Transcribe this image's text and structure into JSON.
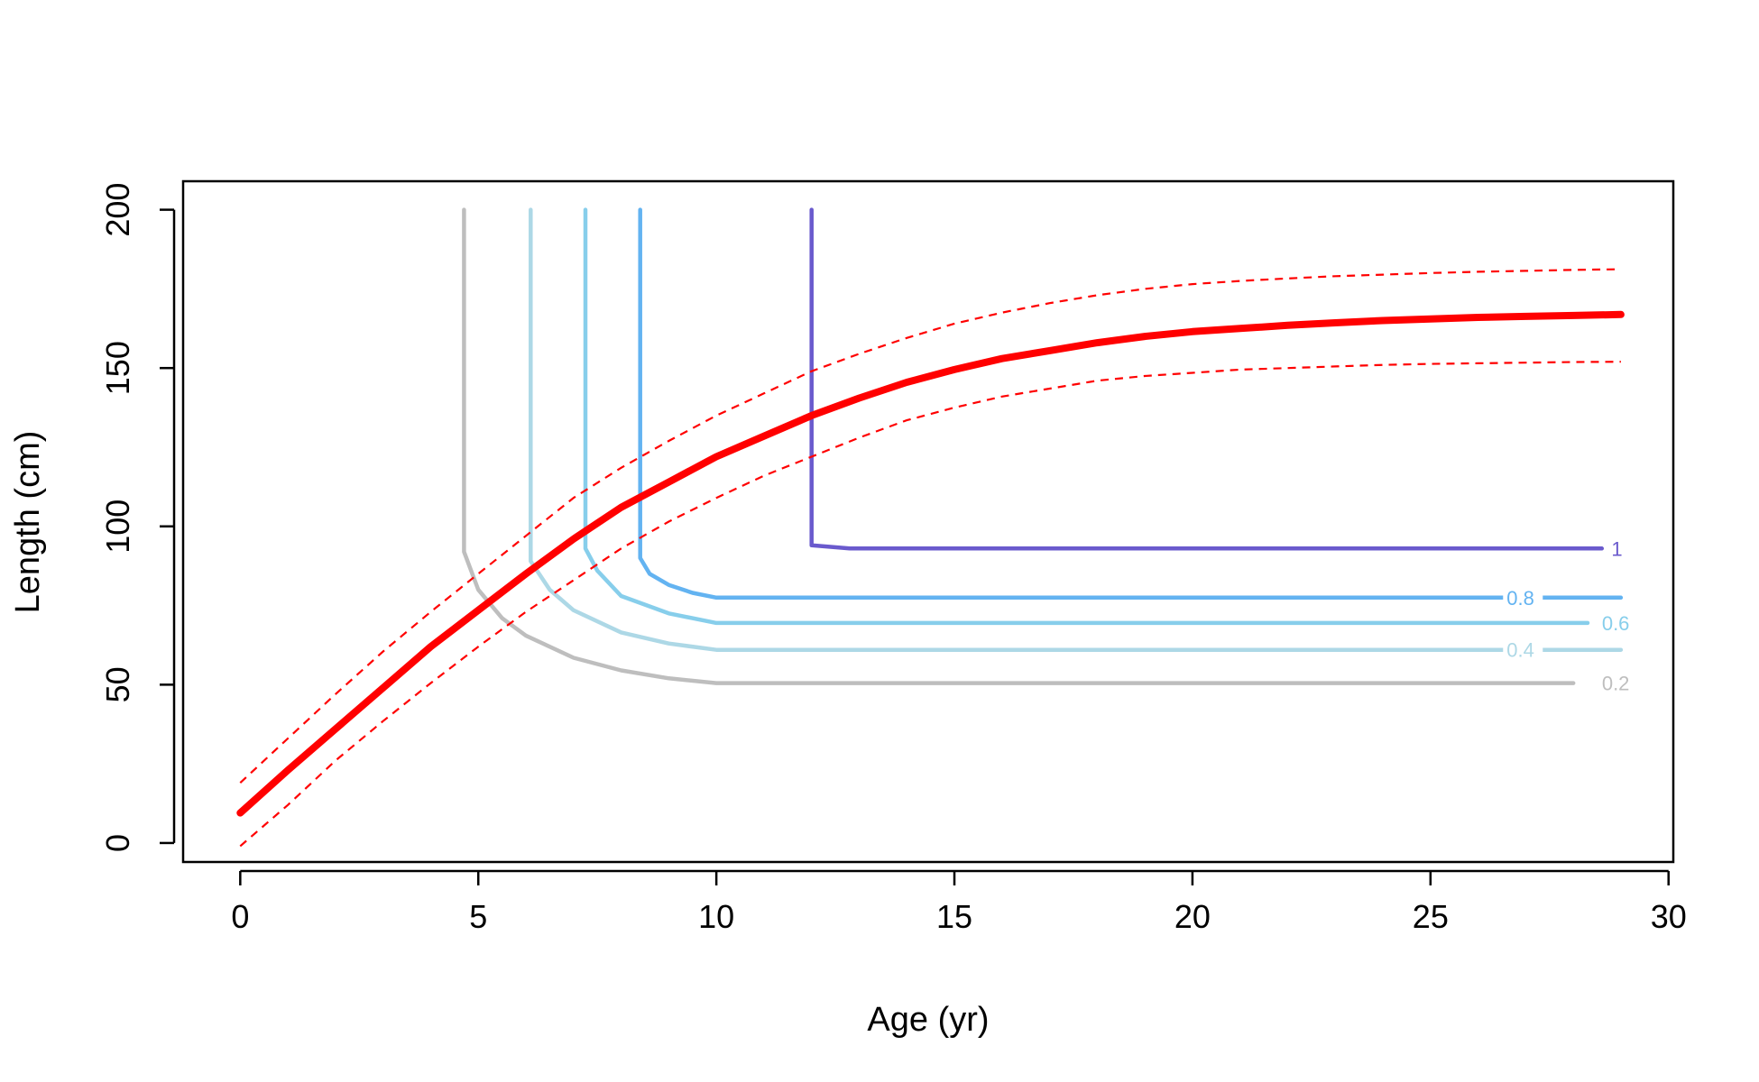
{
  "chart_data": {
    "type": "line",
    "title": "",
    "xlabel": "Age (yr)",
    "ylabel": "Length (cm)",
    "xlim": [
      -1.2,
      30.1
    ],
    "ylim": [
      -6,
      209
    ],
    "x_ticks": [
      0,
      5,
      10,
      15,
      20,
      25,
      30
    ],
    "y_ticks": [
      0,
      50,
      100,
      150,
      200
    ],
    "x_tick_labels": [
      "0",
      "5",
      "10",
      "15",
      "20",
      "25",
      "30"
    ],
    "y_tick_labels": [
      "0",
      "50",
      "100",
      "150",
      "200"
    ],
    "grid": false,
    "legend": "none",
    "growth_curve": {
      "color": "#ff0000",
      "x": [
        0,
        1,
        2,
        3,
        4,
        5,
        6,
        7,
        8,
        9,
        10,
        11,
        12,
        13,
        14,
        15,
        16,
        17,
        18,
        19,
        20,
        21,
        22,
        23,
        24,
        25,
        26,
        27,
        28,
        29
      ],
      "mean": [
        9.5,
        23,
        36,
        49,
        62,
        73.5,
        85,
        96,
        106,
        114,
        122,
        128.5,
        135,
        140.5,
        145.5,
        149.5,
        153,
        155.5,
        158,
        160,
        161.5,
        162.5,
        163.5,
        164.3,
        165,
        165.5,
        166,
        166.3,
        166.6,
        166.9
      ],
      "upper": [
        19,
        33,
        47,
        60.5,
        73,
        85,
        97,
        109,
        118.5,
        127,
        135,
        142,
        149,
        154.5,
        159.5,
        164,
        167.5,
        170.5,
        173,
        175,
        176.5,
        177.5,
        178.3,
        179,
        179.5,
        180,
        180.4,
        180.7,
        181,
        181.2
      ],
      "lower": [
        -1,
        12,
        26,
        38.5,
        50.5,
        62,
        73,
        83,
        93,
        101.5,
        109,
        116,
        122,
        128,
        133.5,
        137.5,
        141,
        143.5,
        146,
        147.5,
        148.5,
        149.5,
        150,
        150.5,
        151,
        151.3,
        151.5,
        151.7,
        151.9,
        152
      ]
    },
    "contours": [
      {
        "label": "1",
        "color": "#6a5acd",
        "x": [
          12,
          12,
          12.8,
          28.6
        ],
        "y": [
          200,
          94,
          93,
          93
        ],
        "label_x": 28.8,
        "label_y": 93,
        "line_ends": 28.6
      },
      {
        "label": "0.8",
        "color": "#63b3f1",
        "x": [
          8.4,
          8.4,
          8.6,
          9.0,
          9.5,
          10.0,
          29
        ],
        "y": [
          200,
          90,
          85,
          81.5,
          79,
          77.5,
          77.5
        ],
        "label_x": 26.6,
        "label_y": 77.5,
        "line_ends": 29
      },
      {
        "label": "0.6",
        "color": "#87ceeb",
        "x": [
          7.25,
          7.25,
          7.5,
          8.0,
          9.0,
          10.0,
          28.3
        ],
        "y": [
          200,
          93,
          86,
          78,
          72.5,
          69.5,
          69.5
        ],
        "label_x": 28.6,
        "label_y": 69.5,
        "line_ends": 28.3
      },
      {
        "label": "0.4",
        "color": "#add8e6",
        "x": [
          6.1,
          6.1,
          6.5,
          7.0,
          8.0,
          9.0,
          10.0,
          29
        ],
        "y": [
          200,
          89,
          80,
          73.5,
          66.5,
          63,
          61,
          61
        ],
        "label_x": 26.6,
        "label_y": 61,
        "line_ends": 29
      },
      {
        "label": "0.2",
        "color": "#bebebe",
        "x": [
          4.7,
          4.7,
          5.0,
          5.5,
          6.0,
          7.0,
          8.0,
          9.0,
          10.0,
          28
        ],
        "y": [
          200,
          92,
          80,
          71,
          65.5,
          58.5,
          54.5,
          52,
          50.5,
          50.5
        ],
        "label_x": 28.6,
        "label_y": 50.5,
        "line_ends": 28
      }
    ]
  }
}
